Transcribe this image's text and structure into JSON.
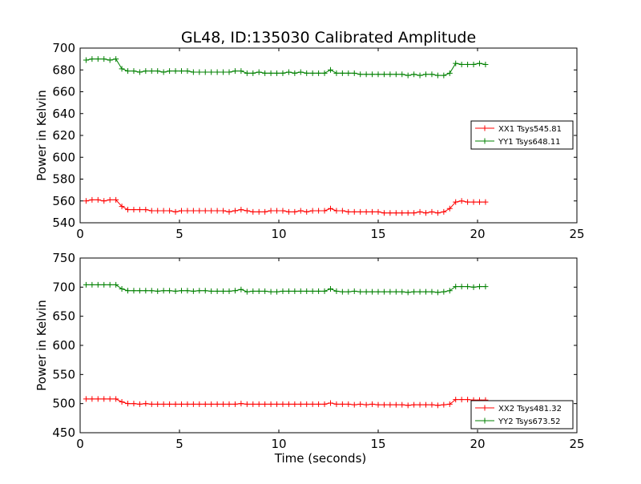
{
  "title": "GL48, ID:135030 Calibrated Amplitude",
  "colors": {
    "red": "#ff0000",
    "green": "#008000"
  },
  "chart_data": [
    {
      "type": "line",
      "title": "GL48, ID:135030 Calibrated Amplitude",
      "xlabel": "",
      "ylabel": "Power in Kelvin",
      "xlim": [
        0,
        25
      ],
      "ylim": [
        540,
        700
      ],
      "xticks": [
        0,
        5,
        10,
        15,
        20,
        25
      ],
      "yticks": [
        540,
        560,
        580,
        600,
        620,
        640,
        660,
        680,
        700
      ],
      "legend_position": "center-right",
      "series": [
        {
          "name": "XX1 Tsys545.81",
          "color": "#ff0000",
          "x": [
            0.3,
            0.6,
            0.9,
            1.2,
            1.5,
            1.8,
            2.1,
            2.4,
            2.7,
            3.0,
            3.3,
            3.6,
            3.9,
            4.2,
            4.5,
            4.8,
            5.1,
            5.4,
            5.7,
            6.0,
            6.3,
            6.6,
            6.9,
            7.2,
            7.5,
            7.8,
            8.1,
            8.4,
            8.7,
            9.0,
            9.3,
            9.6,
            9.9,
            10.2,
            10.5,
            10.8,
            11.1,
            11.4,
            11.7,
            12.0,
            12.3,
            12.6,
            12.9,
            13.2,
            13.5,
            13.8,
            14.1,
            14.4,
            14.7,
            15.0,
            15.3,
            15.6,
            15.9,
            16.2,
            16.5,
            16.8,
            17.1,
            17.4,
            17.7,
            18.0,
            18.3,
            18.6,
            18.9,
            19.2,
            19.5,
            19.8,
            20.1,
            20.4
          ],
          "values": [
            560,
            561,
            561,
            560,
            561,
            561,
            555,
            552,
            552,
            552,
            552,
            551,
            551,
            551,
            551,
            550,
            551,
            551,
            551,
            551,
            551,
            551,
            551,
            551,
            550,
            551,
            552,
            551,
            550,
            550,
            550,
            551,
            551,
            551,
            550,
            550,
            551,
            550,
            551,
            551,
            551,
            553,
            551,
            551,
            550,
            550,
            550,
            550,
            550,
            550,
            549,
            549,
            549,
            549,
            549,
            549,
            550,
            549,
            550,
            549,
            550,
            553,
            559,
            560,
            559,
            559,
            559,
            559
          ]
        },
        {
          "name": "YY1 Tsys648.11",
          "color": "#008000",
          "x": [
            0.3,
            0.6,
            0.9,
            1.2,
            1.5,
            1.8,
            2.1,
            2.4,
            2.7,
            3.0,
            3.3,
            3.6,
            3.9,
            4.2,
            4.5,
            4.8,
            5.1,
            5.4,
            5.7,
            6.0,
            6.3,
            6.6,
            6.9,
            7.2,
            7.5,
            7.8,
            8.1,
            8.4,
            8.7,
            9.0,
            9.3,
            9.6,
            9.9,
            10.2,
            10.5,
            10.8,
            11.1,
            11.4,
            11.7,
            12.0,
            12.3,
            12.6,
            12.9,
            13.2,
            13.5,
            13.8,
            14.1,
            14.4,
            14.7,
            15.0,
            15.3,
            15.6,
            15.9,
            16.2,
            16.5,
            16.8,
            17.1,
            17.4,
            17.7,
            18.0,
            18.3,
            18.6,
            18.9,
            19.2,
            19.5,
            19.8,
            20.1,
            20.4
          ],
          "values": [
            689,
            690,
            690,
            690,
            689,
            690,
            681,
            679,
            679,
            678,
            679,
            679,
            679,
            678,
            679,
            679,
            679,
            679,
            678,
            678,
            678,
            678,
            678,
            678,
            678,
            679,
            679,
            677,
            677,
            678,
            677,
            677,
            677,
            677,
            678,
            677,
            678,
            677,
            677,
            677,
            677,
            680,
            677,
            677,
            677,
            677,
            676,
            676,
            676,
            676,
            676,
            676,
            676,
            676,
            675,
            676,
            675,
            676,
            676,
            675,
            675,
            677,
            686,
            685,
            685,
            685,
            686,
            685
          ]
        }
      ]
    },
    {
      "type": "line",
      "title": "",
      "xlabel": "Time (seconds)",
      "ylabel": "Power in Kelvin",
      "xlim": [
        0,
        25
      ],
      "ylim": [
        450,
        750
      ],
      "xticks": [
        0,
        5,
        10,
        15,
        20,
        25
      ],
      "yticks": [
        450,
        500,
        550,
        600,
        650,
        700,
        750
      ],
      "legend_position": "lower-right",
      "series": [
        {
          "name": "XX2 Tsys481.32",
          "color": "#ff0000",
          "x": [
            0.3,
            0.6,
            0.9,
            1.2,
            1.5,
            1.8,
            2.1,
            2.4,
            2.7,
            3.0,
            3.3,
            3.6,
            3.9,
            4.2,
            4.5,
            4.8,
            5.1,
            5.4,
            5.7,
            6.0,
            6.3,
            6.6,
            6.9,
            7.2,
            7.5,
            7.8,
            8.1,
            8.4,
            8.7,
            9.0,
            9.3,
            9.6,
            9.9,
            10.2,
            10.5,
            10.8,
            11.1,
            11.4,
            11.7,
            12.0,
            12.3,
            12.6,
            12.9,
            13.2,
            13.5,
            13.8,
            14.1,
            14.4,
            14.7,
            15.0,
            15.3,
            15.6,
            15.9,
            16.2,
            16.5,
            16.8,
            17.1,
            17.4,
            17.7,
            18.0,
            18.3,
            18.6,
            18.9,
            19.2,
            19.5,
            19.8,
            20.1,
            20.4
          ],
          "values": [
            508,
            508,
            508,
            508,
            508,
            508,
            503,
            500,
            500,
            499,
            500,
            499,
            499,
            499,
            499,
            499,
            499,
            499,
            499,
            499,
            499,
            499,
            499,
            499,
            499,
            499,
            500,
            499,
            499,
            499,
            499,
            499,
            499,
            499,
            499,
            499,
            499,
            499,
            499,
            499,
            499,
            501,
            499,
            499,
            499,
            498,
            499,
            498,
            499,
            498,
            498,
            498,
            498,
            498,
            497,
            498,
            498,
            498,
            498,
            497,
            498,
            499,
            507,
            507,
            507,
            506,
            506,
            506
          ]
        },
        {
          "name": "YY2 Tsys673.52",
          "color": "#008000",
          "x": [
            0.3,
            0.6,
            0.9,
            1.2,
            1.5,
            1.8,
            2.1,
            2.4,
            2.7,
            3.0,
            3.3,
            3.6,
            3.9,
            4.2,
            4.5,
            4.8,
            5.1,
            5.4,
            5.7,
            6.0,
            6.3,
            6.6,
            6.9,
            7.2,
            7.5,
            7.8,
            8.1,
            8.4,
            8.7,
            9.0,
            9.3,
            9.6,
            9.9,
            10.2,
            10.5,
            10.8,
            11.1,
            11.4,
            11.7,
            12.0,
            12.3,
            12.6,
            12.9,
            13.2,
            13.5,
            13.8,
            14.1,
            14.4,
            14.7,
            15.0,
            15.3,
            15.6,
            15.9,
            16.2,
            16.5,
            16.8,
            17.1,
            17.4,
            17.7,
            18.0,
            18.3,
            18.6,
            18.9,
            19.2,
            19.5,
            19.8,
            20.1,
            20.4
          ],
          "values": [
            704,
            704,
            704,
            704,
            704,
            704,
            697,
            694,
            694,
            694,
            694,
            694,
            693,
            694,
            694,
            693,
            694,
            694,
            693,
            694,
            694,
            693,
            693,
            693,
            693,
            694,
            696,
            692,
            693,
            693,
            693,
            692,
            692,
            693,
            693,
            693,
            693,
            693,
            693,
            693,
            693,
            697,
            693,
            692,
            692,
            693,
            692,
            692,
            692,
            692,
            692,
            692,
            692,
            692,
            691,
            692,
            692,
            692,
            692,
            691,
            692,
            694,
            701,
            701,
            701,
            700,
            701,
            701
          ]
        }
      ]
    }
  ]
}
